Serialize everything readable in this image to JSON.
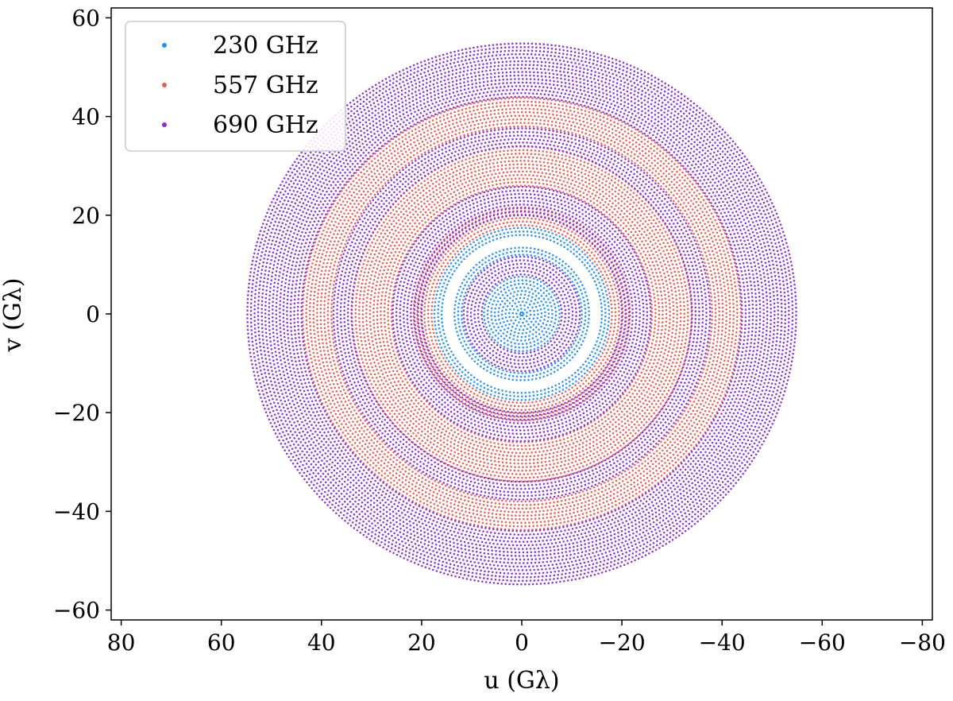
{
  "chart_data": {
    "type": "scatter",
    "title": "",
    "xlabel": "u (Gλ)",
    "ylabel": "v (Gλ)",
    "xlim": [
      82,
      -82
    ],
    "ylim": [
      -62,
      62
    ],
    "x_ticks": [
      80,
      60,
      40,
      20,
      0,
      -20,
      -40,
      -60,
      -80
    ],
    "y_ticks": [
      60,
      40,
      20,
      0,
      -20,
      -40,
      -60
    ],
    "x_tick_labels": [
      "80",
      "60",
      "40",
      "20",
      "0",
      "−20",
      "−40",
      "−60",
      "−80"
    ],
    "y_tick_labels": [
      "60",
      "40",
      "20",
      "0",
      "−20",
      "−40",
      "−60"
    ],
    "grid": false,
    "legend_position": "top-left",
    "series": [
      {
        "name": "230 GHz",
        "color": "#1E90FF",
        "description_rings": [
          {
            "r_min": 0,
            "r_max": 8
          },
          {
            "r_min": 12,
            "r_max": 14
          },
          {
            "r_min": 16,
            "r_max": 18
          }
        ]
      },
      {
        "name": "557 GHz",
        "color": "#F05A4A",
        "description_rings": [
          {
            "r_min": 18,
            "r_max": 22
          },
          {
            "r_min": 26,
            "r_max": 34
          },
          {
            "r_min": 38,
            "r_max": 44
          }
        ]
      },
      {
        "name": "690 GHz",
        "color": "#8A2BE2",
        "description_rings": [
          {
            "r_min": 8,
            "r_max": 12
          },
          {
            "r_min": 20,
            "r_max": 26
          },
          {
            "r_min": 34,
            "r_max": 38
          },
          {
            "r_min": 44,
            "r_max": 55
          }
        ]
      }
    ]
  }
}
